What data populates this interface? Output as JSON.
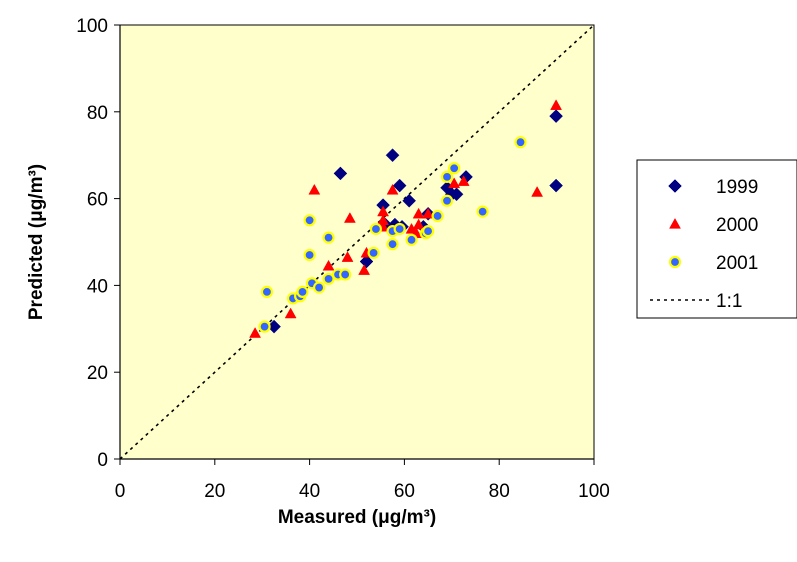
{
  "chart_data": {
    "type": "scatter",
    "xlabel": "Measured (μg/m³)",
    "ylabel": "Predicted (μg/m³)",
    "xlim": [
      0,
      100
    ],
    "ylim": [
      0,
      100
    ],
    "xticks": [
      "0",
      "20",
      "40",
      "60",
      "80",
      "100"
    ],
    "yticks": [
      "0",
      "20",
      "40",
      "60",
      "80",
      "100"
    ],
    "grid": false,
    "plot_background": "#ffffcc",
    "legend_position": "right",
    "series": [
      {
        "name": "1999",
        "marker": "diamond",
        "color": "#000080",
        "points": [
          [
            32.5,
            30.5
          ],
          [
            46.5,
            65.8
          ],
          [
            52,
            45.5
          ],
          [
            55.5,
            58.5
          ],
          [
            56,
            54
          ],
          [
            57.5,
            70
          ],
          [
            58,
            54
          ],
          [
            59,
            63
          ],
          [
            59.5,
            53.5
          ],
          [
            61,
            59.5
          ],
          [
            64,
            53.5
          ],
          [
            65,
            56.5
          ],
          [
            69,
            62.5
          ],
          [
            70,
            61
          ],
          [
            71,
            61
          ],
          [
            73,
            65
          ],
          [
            92,
            79
          ],
          [
            92,
            63
          ]
        ]
      },
      {
        "name": "2000",
        "marker": "triangle",
        "color": "#ff0000",
        "points": [
          [
            28.5,
            29
          ],
          [
            36,
            33.5
          ],
          [
            41,
            62
          ],
          [
            44,
            44.5
          ],
          [
            48,
            46.5
          ],
          [
            48.5,
            55.5
          ],
          [
            51.5,
            43.5
          ],
          [
            52,
            47.5
          ],
          [
            55.5,
            57
          ],
          [
            55.5,
            55
          ],
          [
            55.5,
            53.5
          ],
          [
            57.5,
            62
          ],
          [
            61.5,
            53
          ],
          [
            62.5,
            52
          ],
          [
            63,
            54
          ],
          [
            63,
            56.5
          ],
          [
            65,
            56.5
          ],
          [
            70.5,
            63.5
          ],
          [
            72.5,
            64
          ],
          [
            88,
            61.5
          ],
          [
            92,
            81.5
          ]
        ]
      },
      {
        "name": "2001",
        "marker": "circle",
        "color": "#3366ff",
        "edge_color": "#ffff00",
        "points": [
          [
            30.5,
            30.5
          ],
          [
            31,
            38.5
          ],
          [
            36.5,
            37
          ],
          [
            38,
            37.5
          ],
          [
            38.5,
            38.5
          ],
          [
            40,
            55
          ],
          [
            40,
            47
          ],
          [
            40.5,
            40.5
          ],
          [
            42,
            39.5
          ],
          [
            44,
            51
          ],
          [
            44,
            41.5
          ],
          [
            46,
            42.5
          ],
          [
            47.5,
            42.5
          ],
          [
            53.5,
            47.5
          ],
          [
            54,
            53
          ],
          [
            57.5,
            49.5
          ],
          [
            57.5,
            52.5
          ],
          [
            59,
            53
          ],
          [
            61.5,
            50.5
          ],
          [
            64.5,
            52
          ],
          [
            65,
            52.5
          ],
          [
            67,
            56
          ],
          [
            69,
            65
          ],
          [
            69,
            59.5
          ],
          [
            70.5,
            67
          ],
          [
            76.5,
            57
          ],
          [
            84.5,
            73
          ]
        ]
      },
      {
        "name": "1:1",
        "line": "dashed",
        "color": "#000000",
        "points": [
          [
            0,
            0
          ],
          [
            100,
            100
          ]
        ]
      }
    ]
  }
}
